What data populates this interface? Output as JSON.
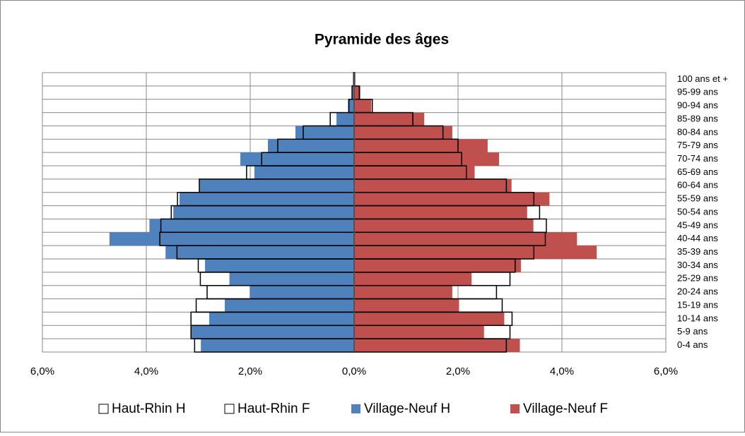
{
  "chart_data": {
    "type": "bar",
    "orientation": "horizontal",
    "title": "Pyramide des âges",
    "categories": [
      "0-4 ans",
      "5-9 ans",
      "10-14 ans",
      "15-19 ans",
      "20-24 ans",
      "25-29 ans",
      "30-34 ans",
      "35-39 ans",
      "40-44 ans",
      "45-49 ans",
      "50-54 ans",
      "55-59 ans",
      "60-64 ans",
      "65-69 ans",
      "70-74 ans",
      "75-79 ans",
      "80-84 ans",
      "85-89 ans",
      "90-94 ans",
      "95-99 ans",
      "100 ans et +"
    ],
    "series": [
      {
        "name": "Haut-Rhin H",
        "color": "#ffffff",
        "style": "outline",
        "values": [
          -3.07,
          -3.14,
          -3.14,
          -3.04,
          -2.83,
          -2.96,
          -3.0,
          -3.41,
          -3.74,
          -3.72,
          -3.52,
          -3.4,
          -2.98,
          -2.07,
          -1.78,
          -1.47,
          -0.98,
          -0.46,
          -0.1,
          -0.04,
          -0.01
        ]
      },
      {
        "name": "Haut-Rhin F",
        "color": "#ffffff",
        "style": "outline",
        "values": [
          2.93,
          3.0,
          3.04,
          2.85,
          2.74,
          3.0,
          3.1,
          3.46,
          3.68,
          3.7,
          3.57,
          3.46,
          2.93,
          2.16,
          2.07,
          2.0,
          1.71,
          1.13,
          0.35,
          0.1,
          0.01
        ]
      },
      {
        "name": "Village-Neuf H",
        "color": "#4f81bd",
        "style": "fill",
        "values": [
          -2.95,
          -3.15,
          -2.79,
          -2.49,
          -2.01,
          -2.4,
          -2.87,
          -3.63,
          -4.71,
          -3.94,
          -3.48,
          -3.36,
          -2.98,
          -1.92,
          -2.19,
          -1.66,
          -1.13,
          -0.34,
          -0.12,
          -0.04,
          -0.01
        ]
      },
      {
        "name": "Village-Neuf F",
        "color": "#c0504d",
        "style": "fill",
        "values": [
          3.19,
          2.5,
          2.89,
          2.02,
          1.89,
          2.26,
          3.21,
          4.67,
          4.29,
          3.45,
          3.33,
          3.76,
          3.03,
          2.32,
          2.79,
          2.57,
          1.89,
          1.35,
          0.33,
          0.12,
          0.01
        ]
      }
    ],
    "xlim": [
      -6,
      6
    ],
    "xticks": [
      {
        "value": -6,
        "label": "6,0%"
      },
      {
        "value": -4,
        "label": "4,0%"
      },
      {
        "value": -2,
        "label": "2,0%"
      },
      {
        "value": 0,
        "label": "0,0%"
      },
      {
        "value": 2,
        "label": "2,0%"
      },
      {
        "value": 4,
        "label": "4,0%"
      },
      {
        "value": 6,
        "label": "6,0%"
      }
    ],
    "grid": true,
    "legend": "bottom"
  }
}
